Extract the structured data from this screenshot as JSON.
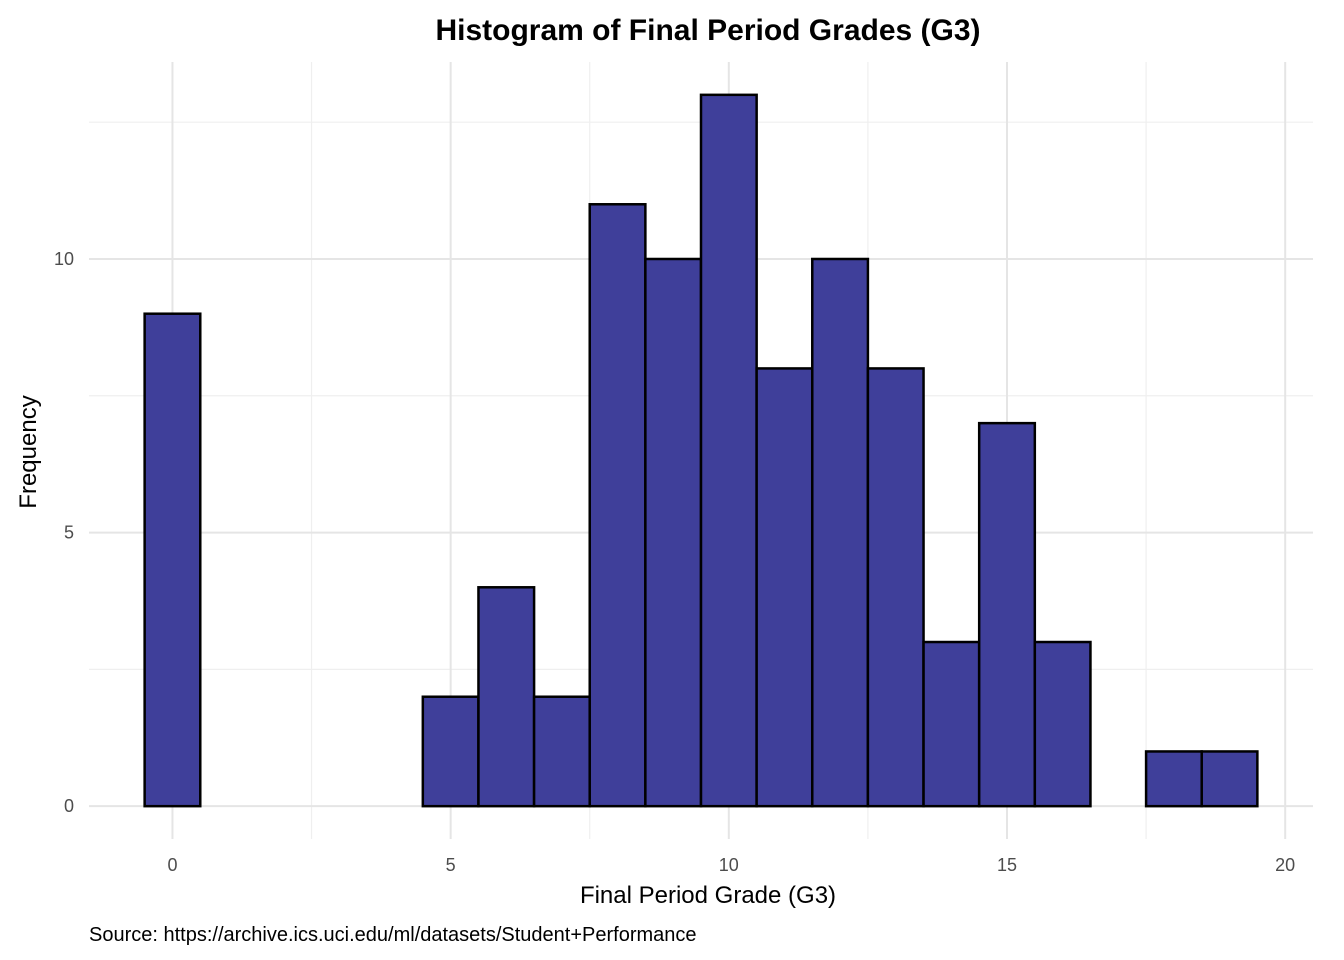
{
  "chart_data": {
    "type": "bar",
    "title": "Histogram of Final Period Grades (G3)",
    "xlabel": "Final Period Grade (G3)",
    "ylabel": "Frequency",
    "caption": "Source: https://archive.ics.uci.edu/ml/datasets/Student+Performance",
    "bin_width": 1,
    "x": [
      0,
      1,
      2,
      3,
      4,
      5,
      6,
      7,
      8,
      9,
      10,
      11,
      12,
      13,
      14,
      15,
      16,
      17,
      18,
      19
    ],
    "values": [
      9,
      0,
      0,
      0,
      0,
      2,
      4,
      2,
      11,
      10,
      13,
      8,
      10,
      8,
      3,
      7,
      3,
      0,
      1,
      1
    ],
    "xlim": [
      -1.5,
      20.5
    ],
    "ylim": [
      -0.6,
      13.6
    ],
    "xticks": [
      0,
      5,
      10,
      15,
      20
    ],
    "yticks": [
      0,
      5,
      10
    ],
    "x_tick_labels": [
      "0",
      "5",
      "10",
      "15",
      "20"
    ],
    "y_tick_labels": [
      "0",
      "5",
      "10"
    ],
    "grid": true,
    "bar_fill": "#3f3f9a",
    "bar_outline": "#000000",
    "gridline_color": "#e5e5e5",
    "background": "#ffffff"
  }
}
